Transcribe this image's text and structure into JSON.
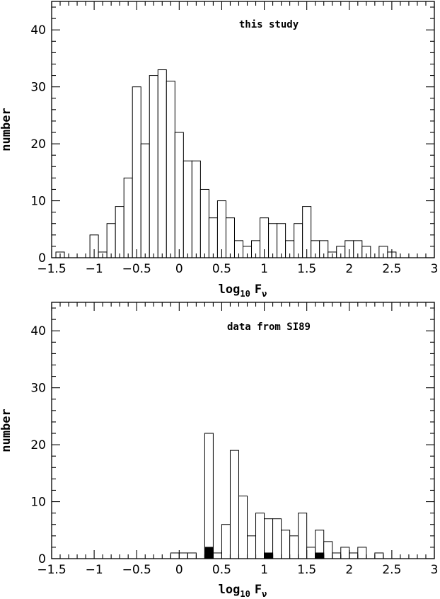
{
  "chart_data": [
    {
      "type": "bar",
      "title": "this study",
      "xlabel": "log10 Fν",
      "xlabel_main": "log",
      "xlabel_sub": "10",
      "xlabel_var": "F",
      "xlabel_varsub": "ν",
      "ylabel": "number",
      "xlim": [
        -1.5,
        3
      ],
      "ylim": [
        0,
        45
      ],
      "bin_width": 0.1,
      "x_ticks": [
        -1.5,
        -1,
        -0.5,
        0,
        0.5,
        1,
        1.5,
        2,
        2.5,
        3
      ],
      "x_tick_labels": [
        "−1.5",
        "−1",
        "−0.5",
        "0",
        "0.5",
        "1",
        "1.5",
        "2",
        "2.5",
        "3"
      ],
      "y_ticks": [
        0,
        10,
        20,
        30,
        40
      ],
      "y_tick_labels": [
        "0",
        "10",
        "20",
        "30",
        "40"
      ],
      "series": [
        {
          "bin_left": [
            -1.45,
            -1.05,
            -0.95,
            -0.85,
            -0.75,
            -0.65,
            -0.55,
            -0.45,
            -0.35,
            -0.25,
            -0.15,
            -0.05,
            0.05,
            0.15,
            0.25,
            0.35,
            0.45,
            0.55,
            0.65,
            0.75,
            0.85,
            0.95,
            1.05,
            1.15,
            1.25,
            1.35,
            1.45,
            1.55,
            1.65,
            1.75,
            1.85,
            1.95,
            2.05,
            2.15,
            2.25,
            2.35,
            2.45,
            2.55
          ],
          "values": [
            1,
            4,
            1,
            6,
            9,
            14,
            30,
            20,
            32,
            33,
            31,
            22,
            17,
            17,
            12,
            7,
            10,
            7,
            3,
            2,
            3,
            7,
            6,
            6,
            3,
            6,
            9,
            3,
            3,
            1,
            2,
            3,
            3,
            2,
            0,
            2,
            1,
            0
          ],
          "fill": "#ffffff"
        }
      ]
    },
    {
      "type": "bar",
      "title": "data from SI89",
      "xlabel": "log10 Fν",
      "xlabel_main": "log",
      "xlabel_sub": "10",
      "xlabel_var": "F",
      "xlabel_varsub": "ν",
      "ylabel": "number",
      "xlim": [
        -1.5,
        3
      ],
      "ylim": [
        0,
        45
      ],
      "bin_width": 0.1,
      "x_ticks": [
        -1.5,
        -1,
        -0.5,
        0,
        0.5,
        1,
        1.5,
        2,
        2.5,
        3
      ],
      "x_tick_labels": [
        "−1.5",
        "−1",
        "−0.5",
        "0",
        "0.5",
        "1",
        "1.5",
        "2",
        "2.5",
        "3"
      ],
      "y_ticks": [
        0,
        10,
        20,
        30,
        40
      ],
      "y_tick_labels": [
        "0",
        "10",
        "20",
        "30",
        "40"
      ],
      "series": [
        {
          "bin_left": [
            -0.1,
            0.0,
            0.1,
            0.2,
            0.3,
            0.4,
            0.5,
            0.6,
            0.7,
            0.8,
            0.9,
            1.0,
            1.1,
            1.2,
            1.3,
            1.4,
            1.5,
            1.6,
            1.7,
            1.8,
            1.9,
            2.0,
            2.1,
            2.2,
            2.3,
            2.4
          ],
          "values": [
            1,
            1,
            1,
            0,
            22,
            1,
            6,
            19,
            11,
            4,
            8,
            7,
            7,
            5,
            4,
            8,
            2,
            5,
            3,
            1,
            2,
            1,
            2,
            0,
            1,
            0
          ],
          "fill": "#ffffff"
        },
        {
          "bin_left": [
            0.3,
            1.0,
            1.6
          ],
          "values": [
            2,
            1,
            1
          ],
          "fill": "#000000"
        }
      ]
    }
  ]
}
